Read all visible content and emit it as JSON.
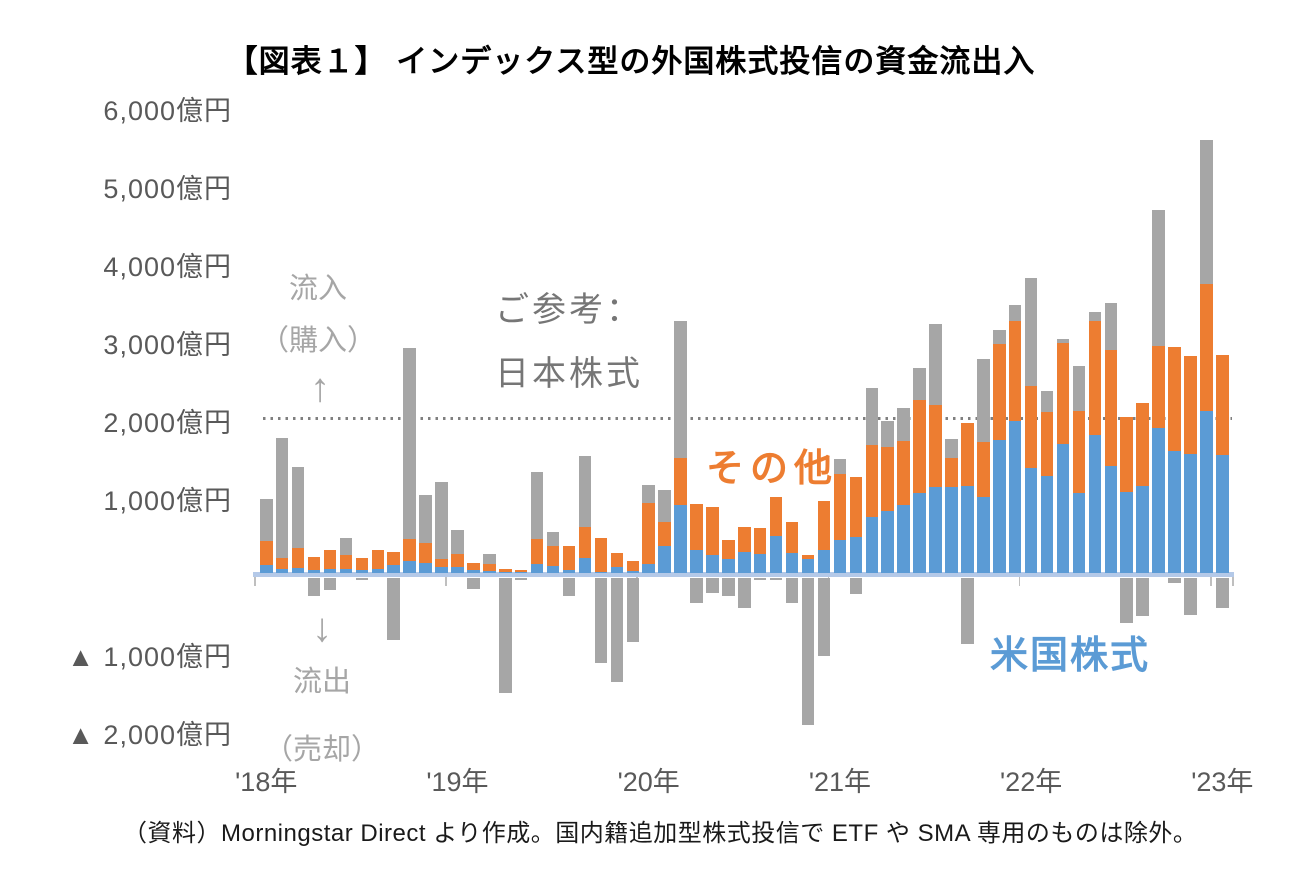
{
  "title": "【図表１】 インデックス型の外国株式投信の資金流出入",
  "source_note": "（資料）Morningstar Direct より作成。国内籍追加型株式投信で ETF や SMA 専用のものは除外。",
  "colors": {
    "us_equity": "#5B9BD5",
    "other": "#ED7D31",
    "japan_reference": "#A6A6A6",
    "axis_line": "#B4C9E8",
    "dotted_gridline": "#7F7F7F",
    "axis_text": "#595959",
    "annotation_gray": "#A6A6A6",
    "reference_note_gray": "#767676"
  },
  "annotations": {
    "inflow_line1": "流入",
    "inflow_line2": "（購入）",
    "inflow_arrow": "↑",
    "outflow_arrow": "↓",
    "outflow_line1": "流出",
    "outflow_line2": "（売却）",
    "reference_line1": "ご参考：",
    "reference_line2": "日本株式",
    "series_other_label": "その他",
    "series_us_label": "米国株式"
  },
  "y_axis": {
    "unit": "億円",
    "labels": [
      "6,000億円",
      "5,000億円",
      "4,000億円",
      "3,000億円",
      "2,000億円",
      "1,000億円",
      "▲ 1,000億円",
      "▲ 2,000億円"
    ],
    "values": [
      6000,
      5000,
      4000,
      3000,
      2000,
      1000,
      -1000,
      -2000
    ]
  },
  "x_axis": {
    "labels": [
      "'18年",
      "'19年",
      "'20年",
      "'21年",
      "'22年",
      "'23年"
    ]
  },
  "chart_data": {
    "type": "bar",
    "title": "【図表１】 インデックス型の外国株式投信の資金流出入",
    "unit": "億円",
    "ylim": [
      -2000,
      6000
    ],
    "dotted_reference_level": 2000,
    "grid": "off",
    "legend_position": "in-plot-labels",
    "series_meta": [
      {
        "name": "米国株式",
        "color": "#5B9BD5",
        "role": "stacked-front"
      },
      {
        "name": "その他",
        "color": "#ED7D31",
        "role": "stacked-front"
      },
      {
        "name": "日本株式（ご参考）",
        "color": "#A6A6A6",
        "role": "overlay-behind"
      }
    ],
    "categories": [
      "2018-01",
      "2018-02",
      "2018-03",
      "2018-04",
      "2018-05",
      "2018-06",
      "2018-07",
      "2018-08",
      "2018-09",
      "2018-10",
      "2018-11",
      "2018-12",
      "2019-01",
      "2019-02",
      "2019-03",
      "2019-04",
      "2019-05",
      "2019-06",
      "2019-07",
      "2019-08",
      "2019-09",
      "2019-10",
      "2019-11",
      "2019-12",
      "2020-01",
      "2020-02",
      "2020-03",
      "2020-04",
      "2020-05",
      "2020-06",
      "2020-07",
      "2020-08",
      "2020-09",
      "2020-10",
      "2020-11",
      "2020-12",
      "2021-01",
      "2021-02",
      "2021-03",
      "2021-04",
      "2021-05",
      "2021-06",
      "2021-07",
      "2021-08",
      "2021-09",
      "2021-10",
      "2021-11",
      "2021-12",
      "2022-01",
      "2022-02",
      "2022-03",
      "2022-04",
      "2022-05",
      "2022-06",
      "2022-07",
      "2022-08",
      "2022-09",
      "2022-10",
      "2022-11",
      "2022-12",
      "2023-01"
    ],
    "us_equity": [
      100,
      50,
      60,
      40,
      50,
      45,
      35,
      45,
      100,
      160,
      130,
      75,
      80,
      40,
      30,
      10,
      10,
      120,
      95,
      40,
      190,
      15,
      80,
      25,
      115,
      350,
      870,
      290,
      230,
      175,
      270,
      240,
      470,
      260,
      175,
      300,
      420,
      460,
      720,
      800,
      870,
      1020,
      1100,
      1100,
      1110,
      970,
      1710,
      1950,
      1340,
      1240,
      1660,
      1030,
      1770,
      1370,
      1040,
      1120,
      1860,
      1570,
      1530,
      2080,
      1510
    ],
    "other": [
      310,
      140,
      260,
      170,
      240,
      185,
      155,
      255,
      175,
      270,
      250,
      100,
      170,
      90,
      90,
      40,
      25,
      310,
      255,
      300,
      400,
      435,
      180,
      135,
      785,
      310,
      610,
      600,
      620,
      245,
      320,
      340,
      500,
      400,
      60,
      620,
      850,
      770,
      920,
      810,
      820,
      1200,
      1050,
      370,
      810,
      710,
      1230,
      1280,
      1060,
      830,
      1290,
      1050,
      1460,
      1490,
      960,
      1060,
      1050,
      1330,
      1250,
      1620,
      1280
    ],
    "japan_reference": [
      950,
      1730,
      1360,
      -290,
      -215,
      450,
      -90,
      150,
      -860,
      2890,
      1000,
      1170,
      550,
      -200,
      250,
      -1540,
      -80,
      1300,
      520,
      -300,
      1500,
      -1160,
      -1400,
      -880,
      1130,
      1070,
      3230,
      -380,
      -250,
      -300,
      -450,
      -90,
      -60,
      -380,
      -1950,
      -1060,
      1460,
      -270,
      2370,
      1950,
      2110,
      2630,
      3190,
      1720,
      -910,
      2750,
      3110,
      3430,
      3780,
      2330,
      3000,
      2660,
      3340,
      3460,
      -640,
      -550,
      4650,
      -130,
      -540,
      5550,
      -450
    ]
  }
}
